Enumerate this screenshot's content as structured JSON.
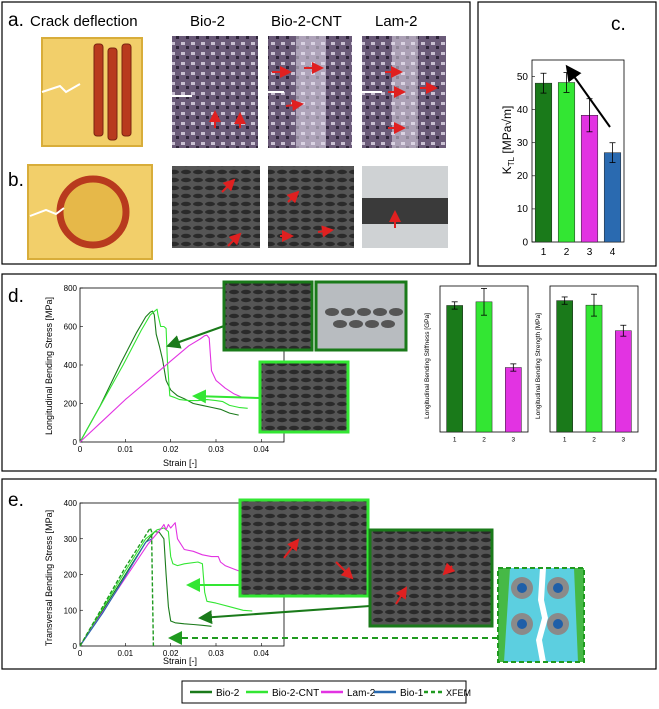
{
  "colors": {
    "bio2": "#1a7a1a",
    "bio2cnt": "#33e633",
    "lam2": "#e233e2",
    "bio1": "#2a6ab0",
    "xfem": "#1f9a1f",
    "arrow_red": "#e02020",
    "card_yellow": "#f2cf6a",
    "fiber_red": "#b83a1e"
  },
  "panel_a": {
    "label": "a.",
    "crack_heading": "Crack deflection",
    "col_bio2": "Bio-2",
    "col_bio2cnt": "Bio-2-CNT",
    "col_lam2": "Lam-2"
  },
  "panel_b": {
    "label": "b."
  },
  "panel_c": {
    "label": "c."
  },
  "panel_d": {
    "label": "d."
  },
  "panel_e": {
    "label": "e."
  },
  "legend": {
    "entries": [
      "Bio-2",
      "Bio-2-CNT",
      "Lam-2",
      "Bio-1",
      "XFEM"
    ]
  },
  "chart_data": [
    {
      "id": "c",
      "type": "bar",
      "title": "",
      "ylabel": "K_TL [MPa√m]",
      "ylabel_main": "K",
      "ylabel_sub": "TL",
      "ylabel_unit": " [MPa√m]",
      "xlabel": "",
      "categories": [
        "1",
        "2",
        "3",
        "4"
      ],
      "values": [
        48,
        48.2,
        38.3,
        27
      ],
      "errors": [
        3,
        3,
        5,
        3
      ],
      "ylim": [
        0,
        55
      ],
      "yticks": [
        "0",
        "10",
        "20",
        "30",
        "40",
        "50"
      ],
      "grid": false
    },
    {
      "id": "d",
      "type": "line",
      "xlabel": "Strain [-]",
      "ylabel": "Longitudinal Bending Stress [MPa]",
      "xlim": [
        0,
        0.045
      ],
      "ylim": [
        0,
        800
      ],
      "xticks": [
        "0",
        "0.01",
        "0.02",
        "0.03",
        "0.04"
      ],
      "yticks": [
        "0",
        "200",
        "400",
        "600",
        "800"
      ],
      "series": [
        {
          "name": "Bio-2",
          "x": [
            0,
            0.0045,
            0.009,
            0.0125,
            0.0145,
            0.0155,
            0.016,
            0.0164,
            0.0168,
            0.0175,
            0.0182,
            0.019,
            0.02,
            0.0215,
            0.023,
            0.025,
            0.027,
            0.029,
            0.031,
            0.033,
            0.035
          ],
          "y": [
            0,
            190,
            410,
            570,
            650,
            675,
            680,
            660,
            560,
            500,
            430,
            320,
            270,
            240,
            225,
            200,
            190,
            180,
            170,
            150,
            140
          ]
        },
        {
          "name": "Bio-2-CNT",
          "x": [
            0,
            0.005,
            0.0095,
            0.0135,
            0.0155,
            0.0165,
            0.017,
            0.0172,
            0.0178,
            0.0185,
            0.019,
            0.0193,
            0.0198,
            0.021,
            0.022,
            0.024,
            0.026,
            0.028,
            0.03,
            0.0315,
            0.033,
            0.035,
            0.037
          ],
          "y": [
            0,
            210,
            400,
            580,
            660,
            680,
            690,
            660,
            600,
            600,
            590,
            410,
            240,
            230,
            220,
            215,
            215,
            220,
            215,
            210,
            190,
            180,
            175
          ]
        },
        {
          "name": "Lam-2",
          "x": [
            0,
            0.005,
            0.01,
            0.015,
            0.02,
            0.024,
            0.0265,
            0.0275,
            0.028,
            0.0285,
            0.029,
            0.03,
            0.032,
            0.034,
            0.036
          ],
          "y": [
            0,
            110,
            220,
            320,
            420,
            500,
            535,
            552,
            555,
            540,
            370,
            320,
            280,
            250,
            230
          ]
        }
      ]
    },
    {
      "id": "d_stiffness",
      "type": "bar",
      "ylabel": "Longitudinal Bending Stiffness [GPa]",
      "categories": [
        "1",
        "2",
        "3"
      ],
      "values": [
        52,
        53.5,
        26.5
      ],
      "errors": [
        1.5,
        5.5,
        1.5
      ],
      "ylim": [
        0,
        60
      ]
    },
    {
      "id": "d_strength",
      "type": "bar",
      "ylabel": "Longitudinal Bending Strength [MPa]",
      "categories": [
        "1",
        "2",
        "3"
      ],
      "values": [
        720,
        695,
        555
      ],
      "errors": [
        20,
        60,
        30
      ],
      "ylim": [
        0,
        800
      ]
    },
    {
      "id": "e",
      "type": "line",
      "xlabel": "Strain [-]",
      "ylabel": "Transversal Bending Stress [MPa]",
      "xlim": [
        0,
        0.045
      ],
      "ylim": [
        0,
        400
      ],
      "xticks": [
        "0",
        "0.01",
        "0.02",
        "0.03",
        "0.04"
      ],
      "yticks": [
        "0",
        "100",
        "200",
        "300",
        "400"
      ],
      "series": [
        {
          "name": "Bio-2",
          "x": [
            0,
            0.005,
            0.01,
            0.0145,
            0.0165,
            0.0175,
            0.0185,
            0.019,
            0.0195,
            0.02,
            0.021,
            0.023,
            0.025,
            0.027,
            0.029
          ],
          "y": [
            0,
            100,
            200,
            290,
            320,
            318,
            300,
            200,
            110,
            70,
            65,
            62,
            60,
            58,
            55
          ]
        },
        {
          "name": "Bio-2-CNT",
          "x": [
            0,
            0.005,
            0.01,
            0.0145,
            0.017,
            0.0185,
            0.0195,
            0.02,
            0.0205,
            0.0215,
            0.023,
            0.026,
            0.027,
            0.0275,
            0.028,
            0.03,
            0.033,
            0.036,
            0.038
          ],
          "y": [
            0,
            105,
            210,
            300,
            325,
            330,
            320,
            250,
            230,
            225,
            230,
            235,
            230,
            150,
            125,
            120,
            110,
            100,
            98
          ]
        },
        {
          "name": "Lam-2",
          "x": [
            0,
            0.005,
            0.01,
            0.015,
            0.018,
            0.0185,
            0.019,
            0.0195,
            0.02,
            0.021,
            0.0215,
            0.022,
            0.023,
            0.025,
            0.027,
            0.029,
            0.0305,
            0.031,
            0.032,
            0.034,
            0.035
          ],
          "y": [
            0,
            95,
            190,
            285,
            330,
            340,
            325,
            340,
            330,
            345,
            300,
            290,
            270,
            265,
            255,
            250,
            250,
            235,
            225,
            215,
            210
          ]
        },
        {
          "name": "Bio-1",
          "x": [
            0,
            0.005,
            0.01,
            0.0145,
            0.0158
          ],
          "y": [
            0,
            92,
            195,
            290,
            300
          ]
        },
        {
          "name": "XFEM",
          "x": [
            0,
            0.005,
            0.01,
            0.014,
            0.0155,
            0.0158,
            0.016,
            0.0162
          ],
          "y": [
            0,
            110,
            220,
            300,
            330,
            320,
            150,
            0
          ]
        }
      ]
    }
  ]
}
